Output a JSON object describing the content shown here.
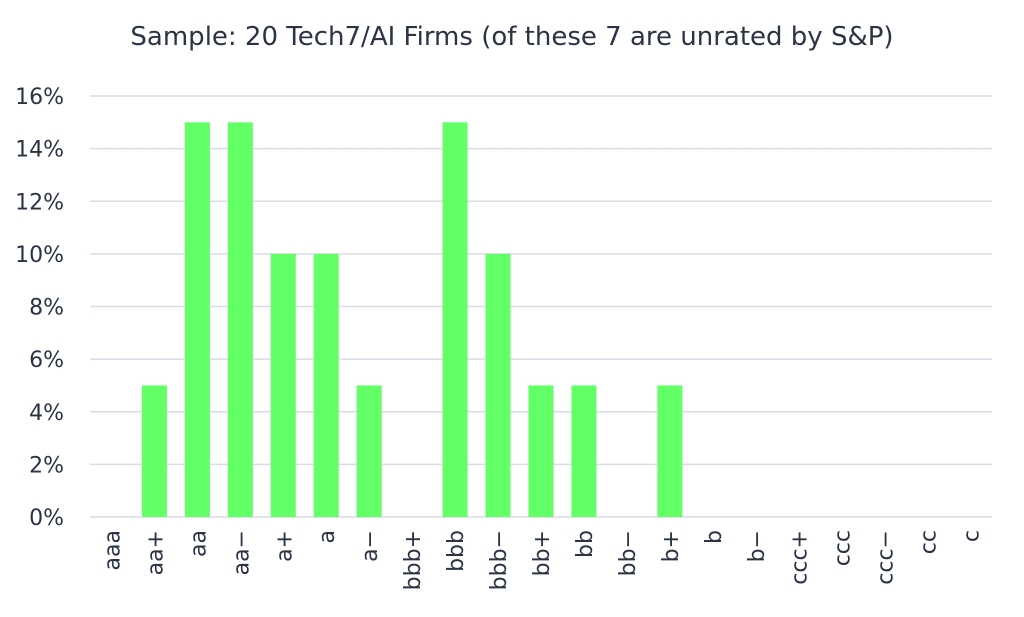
{
  "chart_data": {
    "type": "bar",
    "title": "Sample: 20 Tech7/AI Firms (of these 7 are unrated by S&P)",
    "xlabel": "",
    "ylabel": "",
    "categories": [
      "aaa",
      "aa+",
      "aa",
      "aa−",
      "a+",
      "a",
      "a−",
      "bbb+",
      "bbb",
      "bbb−",
      "bb+",
      "bb",
      "bb−",
      "b+",
      "b",
      "b−",
      "ccc+",
      "ccc",
      "ccc−",
      "cc",
      "c"
    ],
    "values": [
      0,
      5,
      15,
      15,
      10,
      10,
      5,
      0,
      15,
      10,
      5,
      5,
      0,
      5,
      0,
      0,
      0,
      0,
      0,
      0,
      0
    ],
    "ylim": [
      0,
      16
    ],
    "yticks": [
      0,
      2,
      4,
      6,
      8,
      10,
      12,
      14,
      16
    ],
    "ytick_labels": [
      "0%",
      "2%",
      "4%",
      "6%",
      "8%",
      "10%",
      "12%",
      "14%",
      "16%"
    ],
    "grid": true,
    "legend": "none",
    "colors": {
      "bar": "#62ff66",
      "grid": "#d9dce6",
      "text": "#2b3445"
    }
  }
}
